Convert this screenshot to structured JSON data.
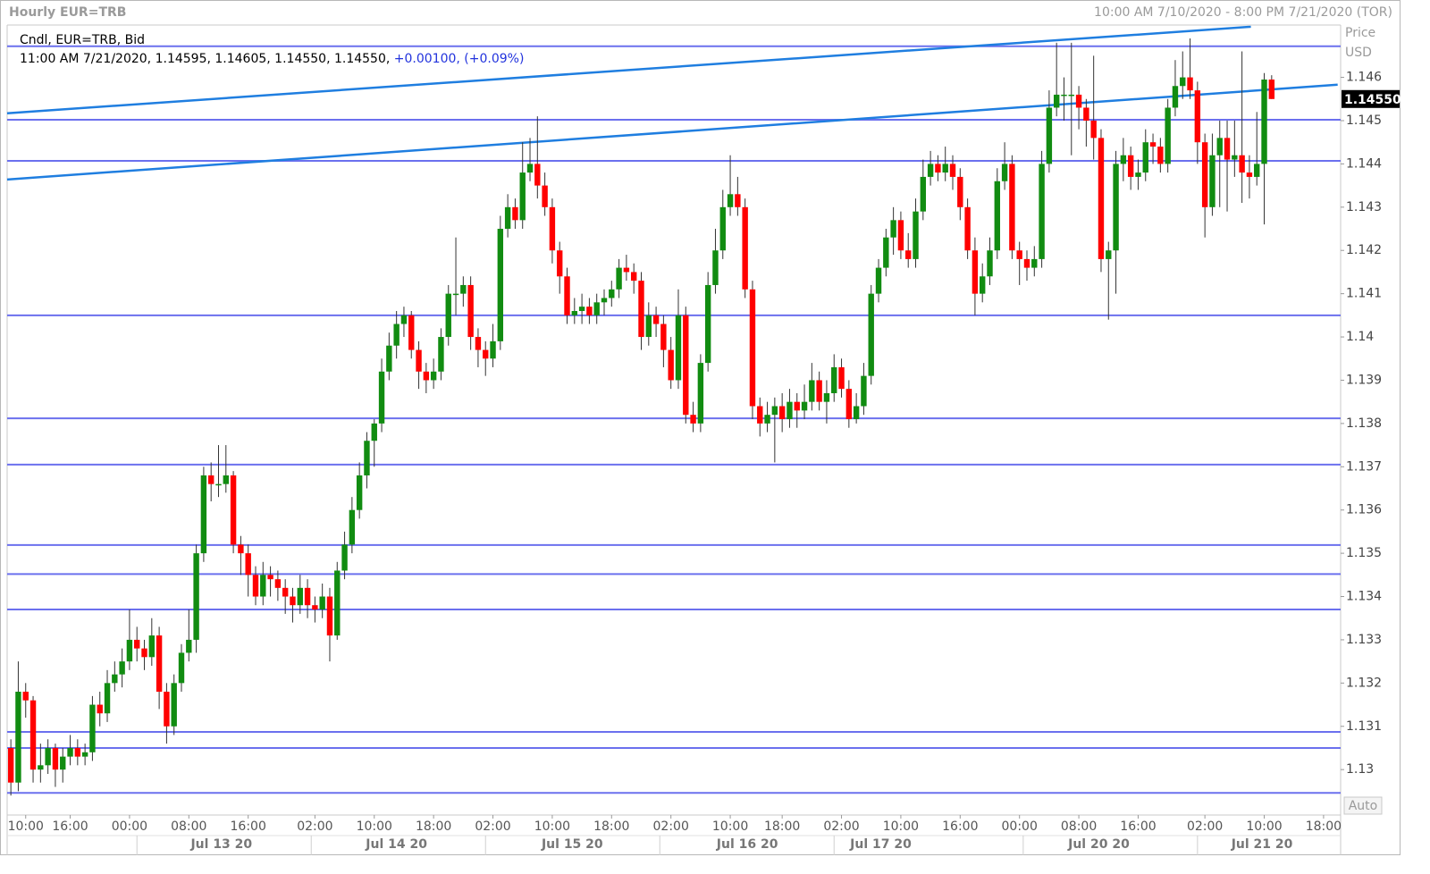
{
  "chart_data": {
    "type": "candlestick",
    "title": "Hourly EUR=TRB",
    "range_text": "10:00 AM 7/10/2020 - 8:00 PM 7/21/2020 (TOR)",
    "series_label": "Cndl, EUR=TRB, Bid",
    "legend_info": "11:00 AM 7/21/2020, 1.14595, 1.14605, 1.14550, 1.14550,",
    "change_text": "+0.00100, (+0.09%)",
    "axis_title": "Price",
    "axis_unit": "USD",
    "auto_button": "Auto",
    "up_color": "#118c11",
    "down_color": "#ff0000",
    "level_color": "#6b70ee",
    "trend_color": "#1f7ee0",
    "last_price": {
      "value": 1.1455,
      "label": "1.14550"
    },
    "ylim": [
      1.12895,
      1.14721
    ],
    "yticks": [
      1.13,
      1.131,
      1.132,
      1.133,
      1.134,
      1.135,
      1.136,
      1.137,
      1.138,
      1.139,
      1.14,
      1.141,
      1.142,
      1.143,
      1.144,
      1.145,
      1.146
    ],
    "xlim": [
      -0.5,
      179.3
    ],
    "xticks": [
      {
        "value": 2,
        "label": "10:00"
      },
      {
        "value": 8,
        "label": "16:00"
      },
      {
        "value": 16,
        "label": "00:00"
      },
      {
        "value": 24,
        "label": "08:00"
      },
      {
        "value": 32,
        "label": "16:00"
      },
      {
        "value": 41,
        "label": "02:00"
      },
      {
        "value": 49,
        "label": "10:00"
      },
      {
        "value": 57,
        "label": "18:00"
      },
      {
        "value": 65,
        "label": "02:00"
      },
      {
        "value": 73,
        "label": "10:00"
      },
      {
        "value": 81,
        "label": "18:00"
      },
      {
        "value": 89,
        "label": "02:00"
      },
      {
        "value": 97,
        "label": "10:00"
      },
      {
        "value": 104,
        "label": "18:00"
      },
      {
        "value": 112,
        "label": "02:00"
      },
      {
        "value": 120,
        "label": "10:00"
      },
      {
        "value": 128,
        "label": "16:00"
      },
      {
        "value": 136,
        "label": "00:00"
      },
      {
        "value": 144,
        "label": "08:00"
      },
      {
        "value": 152,
        "label": "16:00"
      },
      {
        "value": 161,
        "label": "02:00"
      },
      {
        "value": 169,
        "label": "10:00"
      },
      {
        "value": 177,
        "label": "18:00"
      }
    ],
    "date_labels": [
      {
        "value": 28.4,
        "label": "Jul 13 20"
      },
      {
        "value": 52,
        "label": "Jul 14 20"
      },
      {
        "value": 75.7,
        "label": "Jul 15 20"
      },
      {
        "value": 99.3,
        "label": "Jul 16 20"
      },
      {
        "value": 117.3,
        "label": "Jul 17 20"
      },
      {
        "value": 146.7,
        "label": "Jul 20 20"
      },
      {
        "value": 168.7,
        "label": "Jul 21 20"
      }
    ],
    "day_breaks": [
      17,
      40.5,
      64,
      87.5,
      111,
      136.5,
      160
    ],
    "levels": [
      1.14672,
      1.14502,
      1.14407,
      1.1405,
      1.13812,
      1.13705,
      1.13519,
      1.13452,
      1.1337,
      1.13087,
      1.1305,
      1.12946
    ],
    "trendlines": [
      {
        "x": [
          -0.5,
          167.2
        ],
        "y": [
          1.14517,
          1.14717
        ]
      },
      {
        "x": [
          -0.5,
          178.9
        ],
        "y": [
          1.14364,
          1.14583
        ]
      }
    ],
    "candles": [
      [
        1.1305,
        1.1307,
        1.1294,
        1.1297
      ],
      [
        1.1297,
        1.1325,
        1.1295,
        1.1318
      ],
      [
        1.1318,
        1.132,
        1.1312,
        1.1316
      ],
      [
        1.1316,
        1.1317,
        1.1297,
        1.13
      ],
      [
        1.13,
        1.1306,
        1.1297,
        1.1301
      ],
      [
        1.1301,
        1.1307,
        1.1299,
        1.1305
      ],
      [
        1.1305,
        1.1306,
        1.1296,
        1.13
      ],
      [
        1.13,
        1.1305,
        1.1297,
        1.1303
      ],
      [
        1.1303,
        1.1308,
        1.1301,
        1.1305
      ],
      [
        1.1305,
        1.1307,
        1.1301,
        1.1303
      ],
      [
        1.1303,
        1.1306,
        1.1301,
        1.1304
      ],
      [
        1.1304,
        1.1317,
        1.1302,
        1.1315
      ],
      [
        1.1315,
        1.1318,
        1.131,
        1.1313
      ],
      [
        1.1313,
        1.1323,
        1.1311,
        1.132
      ],
      [
        1.132,
        1.1325,
        1.1318,
        1.1322
      ],
      [
        1.1322,
        1.1328,
        1.1319,
        1.1325
      ],
      [
        1.1325,
        1.1337,
        1.1323,
        1.133
      ],
      [
        1.133,
        1.1333,
        1.1325,
        1.1328
      ],
      [
        1.1328,
        1.133,
        1.1323,
        1.1326
      ],
      [
        1.1326,
        1.1335,
        1.1324,
        1.1331
      ],
      [
        1.1331,
        1.1333,
        1.1314,
        1.1318
      ],
      [
        1.1318,
        1.132,
        1.1306,
        1.131
      ],
      [
        1.131,
        1.1322,
        1.1308,
        1.132
      ],
      [
        1.132,
        1.1329,
        1.1318,
        1.1327
      ],
      [
        1.1327,
        1.1337,
        1.1325,
        1.133
      ],
      [
        1.133,
        1.1352,
        1.1327,
        1.135
      ],
      [
        1.135,
        1.137,
        1.1348,
        1.1368
      ],
      [
        1.1368,
        1.1371,
        1.1362,
        1.1366
      ],
      [
        1.1366,
        1.1375,
        1.1363,
        1.1366
      ],
      [
        1.1366,
        1.1375,
        1.1364,
        1.1368
      ],
      [
        1.1368,
        1.1369,
        1.135,
        1.1352
      ],
      [
        1.1352,
        1.1354,
        1.1345,
        1.135
      ],
      [
        1.135,
        1.1352,
        1.134,
        1.1345
      ],
      [
        1.1345,
        1.1347,
        1.1338,
        1.134
      ],
      [
        1.134,
        1.1348,
        1.1338,
        1.1345
      ],
      [
        1.1345,
        1.1347,
        1.134,
        1.1344
      ],
      [
        1.1344,
        1.1346,
        1.1339,
        1.1342
      ],
      [
        1.1342,
        1.1344,
        1.1336,
        1.134
      ],
      [
        1.134,
        1.1342,
        1.1334,
        1.1338
      ],
      [
        1.1338,
        1.1345,
        1.1336,
        1.1342
      ],
      [
        1.1342,
        1.1344,
        1.1335,
        1.1338
      ],
      [
        1.1338,
        1.134,
        1.1334,
        1.1337
      ],
      [
        1.1337,
        1.1343,
        1.1335,
        1.134
      ],
      [
        1.134,
        1.1342,
        1.1325,
        1.1331
      ],
      [
        1.1331,
        1.1348,
        1.133,
        1.1346
      ],
      [
        1.1346,
        1.1355,
        1.1344,
        1.1352
      ],
      [
        1.1352,
        1.1363,
        1.135,
        1.136
      ],
      [
        1.136,
        1.1371,
        1.1358,
        1.1368
      ],
      [
        1.1368,
        1.1378,
        1.1365,
        1.1376
      ],
      [
        1.1376,
        1.1381,
        1.137,
        1.138
      ],
      [
        1.138,
        1.1395,
        1.1378,
        1.1392
      ],
      [
        1.1392,
        1.1401,
        1.139,
        1.1398
      ],
      [
        1.1398,
        1.1406,
        1.1395,
        1.1403
      ],
      [
        1.1403,
        1.1407,
        1.14,
        1.1405
      ],
      [
        1.1405,
        1.1406,
        1.1395,
        1.1397
      ],
      [
        1.1397,
        1.1399,
        1.1388,
        1.1392
      ],
      [
        1.1392,
        1.1394,
        1.1387,
        1.139
      ],
      [
        1.139,
        1.1395,
        1.1388,
        1.1392
      ],
      [
        1.1392,
        1.1402,
        1.139,
        1.14
      ],
      [
        1.14,
        1.1412,
        1.1398,
        1.141
      ],
      [
        1.141,
        1.1423,
        1.1405,
        1.141
      ],
      [
        1.141,
        1.1414,
        1.1407,
        1.1412
      ],
      [
        1.1412,
        1.1414,
        1.1397,
        1.14
      ],
      [
        1.14,
        1.1402,
        1.1393,
        1.1397
      ],
      [
        1.1397,
        1.1399,
        1.1391,
        1.1395
      ],
      [
        1.1395,
        1.1403,
        1.1393,
        1.1399
      ],
      [
        1.1399,
        1.1428,
        1.1397,
        1.1425
      ],
      [
        1.1425,
        1.1433,
        1.1423,
        1.143
      ],
      [
        1.143,
        1.1432,
        1.1425,
        1.1427
      ],
      [
        1.1427,
        1.1445,
        1.1425,
        1.1438
      ],
      [
        1.1438,
        1.1446,
        1.1436,
        1.144
      ],
      [
        1.144,
        1.1451,
        1.1432,
        1.1435
      ],
      [
        1.1435,
        1.1438,
        1.1428,
        1.143
      ],
      [
        1.143,
        1.1432,
        1.1417,
        1.142
      ],
      [
        1.142,
        1.1422,
        1.141,
        1.1414
      ],
      [
        1.1414,
        1.1416,
        1.1403,
        1.1405
      ],
      [
        1.1405,
        1.1409,
        1.1403,
        1.1406
      ],
      [
        1.1406,
        1.141,
        1.1403,
        1.1407
      ],
      [
        1.1407,
        1.1409,
        1.1403,
        1.1405
      ],
      [
        1.1405,
        1.141,
        1.1403,
        1.1408
      ],
      [
        1.1408,
        1.1411,
        1.1405,
        1.1409
      ],
      [
        1.1409,
        1.1413,
        1.1407,
        1.1411
      ],
      [
        1.1411,
        1.1418,
        1.1409,
        1.1416
      ],
      [
        1.1416,
        1.1419,
        1.1413,
        1.1415
      ],
      [
        1.1415,
        1.1417,
        1.141,
        1.1413
      ],
      [
        1.1413,
        1.1415,
        1.1397,
        1.14
      ],
      [
        1.14,
        1.1408,
        1.1398,
        1.1405
      ],
      [
        1.1405,
        1.1407,
        1.14,
        1.1403
      ],
      [
        1.1403,
        1.1405,
        1.1393,
        1.1397
      ],
      [
        1.1397,
        1.14,
        1.1388,
        1.139
      ],
      [
        1.139,
        1.1411,
        1.1388,
        1.1405
      ],
      [
        1.1405,
        1.1407,
        1.138,
        1.1382
      ],
      [
        1.1382,
        1.1385,
        1.1378,
        1.138
      ],
      [
        1.138,
        1.1396,
        1.1378,
        1.1394
      ],
      [
        1.1394,
        1.1415,
        1.1392,
        1.1412
      ],
      [
        1.1412,
        1.1425,
        1.141,
        1.142
      ],
      [
        1.142,
        1.1434,
        1.1418,
        1.143
      ],
      [
        1.143,
        1.1442,
        1.1428,
        1.1433
      ],
      [
        1.1433,
        1.1437,
        1.1428,
        1.143
      ],
      [
        1.143,
        1.1432,
        1.1409,
        1.1411
      ],
      [
        1.1411,
        1.1413,
        1.1381,
        1.1384
      ],
      [
        1.1384,
        1.1386,
        1.1377,
        1.138
      ],
      [
        1.138,
        1.1385,
        1.1378,
        1.1382
      ],
      [
        1.1382,
        1.1386,
        1.1371,
        1.1384
      ],
      [
        1.1384,
        1.1387,
        1.1378,
        1.1381
      ],
      [
        1.1381,
        1.1388,
        1.1379,
        1.1385
      ],
      [
        1.1385,
        1.1387,
        1.1379,
        1.1383
      ],
      [
        1.1383,
        1.1389,
        1.1381,
        1.1385
      ],
      [
        1.1385,
        1.1394,
        1.1383,
        1.139
      ],
      [
        1.139,
        1.1392,
        1.1383,
        1.1385
      ],
      [
        1.1385,
        1.139,
        1.138,
        1.1387
      ],
      [
        1.1387,
        1.1396,
        1.1385,
        1.1393
      ],
      [
        1.1393,
        1.1395,
        1.1386,
        1.1388
      ],
      [
        1.1388,
        1.139,
        1.1379,
        1.1381
      ],
      [
        1.1381,
        1.1387,
        1.138,
        1.1384
      ],
      [
        1.1384,
        1.1394,
        1.1382,
        1.1391
      ],
      [
        1.1391,
        1.1412,
        1.1389,
        1.141
      ],
      [
        1.141,
        1.1418,
        1.1408,
        1.1416
      ],
      [
        1.1416,
        1.1425,
        1.1414,
        1.1423
      ],
      [
        1.1423,
        1.143,
        1.1419,
        1.1427
      ],
      [
        1.1427,
        1.1429,
        1.1418,
        1.142
      ],
      [
        1.142,
        1.1424,
        1.1416,
        1.1418
      ],
      [
        1.1418,
        1.1432,
        1.1416,
        1.1429
      ],
      [
        1.1429,
        1.1441,
        1.1427,
        1.1437
      ],
      [
        1.1437,
        1.1443,
        1.1435,
        1.144
      ],
      [
        1.144,
        1.1442,
        1.1436,
        1.1438
      ],
      [
        1.1438,
        1.1444,
        1.1436,
        1.144
      ],
      [
        1.144,
        1.1442,
        1.1434,
        1.1437
      ],
      [
        1.1437,
        1.1439,
        1.1427,
        1.143
      ],
      [
        1.143,
        1.1432,
        1.1418,
        1.142
      ],
      [
        1.142,
        1.1423,
        1.1405,
        1.141
      ],
      [
        1.141,
        1.1417,
        1.1408,
        1.1414
      ],
      [
        1.1414,
        1.1423,
        1.1412,
        1.142
      ],
      [
        1.142,
        1.1439,
        1.1418,
        1.1436
      ],
      [
        1.1436,
        1.1445,
        1.1434,
        1.144
      ],
      [
        1.144,
        1.1442,
        1.1418,
        1.142
      ],
      [
        1.142,
        1.1422,
        1.1412,
        1.1418
      ],
      [
        1.1418,
        1.142,
        1.1413,
        1.1416
      ],
      [
        1.1416,
        1.1421,
        1.1414,
        1.1418
      ],
      [
        1.1418,
        1.1443,
        1.1416,
        1.144
      ],
      [
        1.144,
        1.1457,
        1.1438,
        1.1453
      ],
      [
        1.1453,
        1.1468,
        1.1451,
        1.1456
      ],
      [
        1.1456,
        1.146,
        1.145,
        1.1456
      ],
      [
        1.1456,
        1.1468,
        1.1442,
        1.1456
      ],
      [
        1.1456,
        1.1458,
        1.1448,
        1.1453
      ],
      [
        1.1453,
        1.1455,
        1.1444,
        1.145
      ],
      [
        1.145,
        1.1465,
        1.1441,
        1.1446
      ],
      [
        1.1446,
        1.1448,
        1.1415,
        1.1418
      ],
      [
        1.1418,
        1.1422,
        1.1404,
        1.142
      ],
      [
        1.142,
        1.1443,
        1.141,
        1.144
      ],
      [
        1.144,
        1.1446,
        1.1436,
        1.1442
      ],
      [
        1.1442,
        1.1444,
        1.1434,
        1.1437
      ],
      [
        1.1437,
        1.1441,
        1.1434,
        1.1438
      ],
      [
        1.1438,
        1.1448,
        1.1436,
        1.1445
      ],
      [
        1.1445,
        1.1447,
        1.144,
        1.1444
      ],
      [
        1.1444,
        1.1446,
        1.1438,
        1.144
      ],
      [
        1.144,
        1.1455,
        1.1438,
        1.1453
      ],
      [
        1.1453,
        1.1464,
        1.1451,
        1.1458
      ],
      [
        1.1458,
        1.1466,
        1.1455,
        1.146
      ],
      [
        1.146,
        1.1469,
        1.1455,
        1.1457
      ],
      [
        1.1457,
        1.1459,
        1.144,
        1.1445
      ],
      [
        1.1445,
        1.1447,
        1.1423,
        1.143
      ],
      [
        1.143,
        1.1447,
        1.1428,
        1.1442
      ],
      [
        1.1442,
        1.145,
        1.143,
        1.1446
      ],
      [
        1.1446,
        1.145,
        1.1429,
        1.1441
      ],
      [
        1.1441,
        1.145,
        1.1437,
        1.1442
      ],
      [
        1.1442,
        1.1466,
        1.1431,
        1.1438
      ],
      [
        1.1438,
        1.1442,
        1.1432,
        1.1437
      ],
      [
        1.1437,
        1.1452,
        1.1435,
        1.144
      ],
      [
        1.144,
        1.1461,
        1.1426,
        1.14595
      ],
      [
        1.14595,
        1.14605,
        1.1455,
        1.1455
      ]
    ]
  }
}
